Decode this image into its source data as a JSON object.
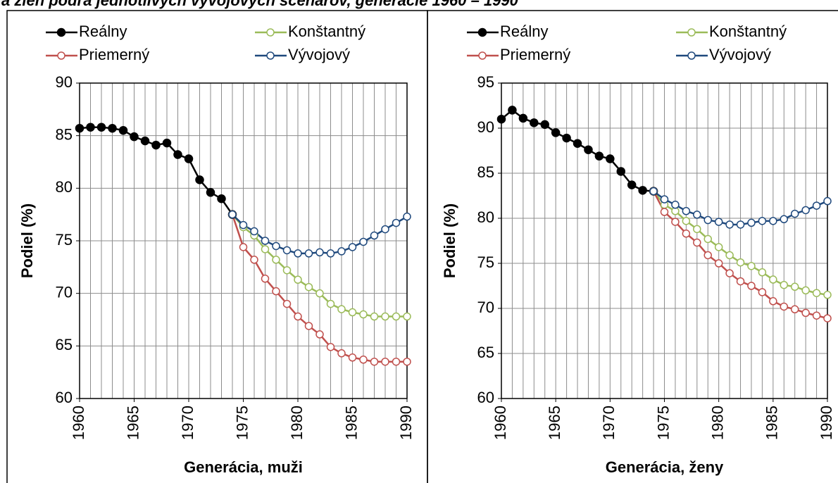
{
  "title": "a žien podľa jednotlivých vývojových scenárov, generácie 1960 – 1990",
  "chart_data": [
    {
      "type": "line",
      "x_label": "Generácia, muži",
      "y_label": "Podiel (%)",
      "x": [
        1960,
        1961,
        1962,
        1963,
        1964,
        1965,
        1966,
        1967,
        1968,
        1969,
        1970,
        1971,
        1972,
        1973,
        1974,
        1975,
        1976,
        1977,
        1978,
        1979,
        1980,
        1981,
        1982,
        1983,
        1984,
        1985,
        1986,
        1987,
        1988,
        1989,
        1990
      ],
      "xlim": [
        1960,
        1990
      ],
      "xticks": [
        1960,
        1965,
        1970,
        1975,
        1980,
        1985,
        1990
      ],
      "ylim": [
        60,
        90
      ],
      "yticks": [
        60,
        65,
        70,
        75,
        80,
        85,
        90
      ],
      "grid": true,
      "series": [
        {
          "name": "Reálny",
          "color": "#000000",
          "values": [
            85.7,
            85.8,
            85.8,
            85.7,
            85.5,
            84.9,
            84.5,
            84.1,
            84.3,
            83.2,
            82.8,
            80.8,
            79.6,
            79.0,
            77.5,
            null,
            null,
            null,
            null,
            null,
            null,
            null,
            null,
            null,
            null,
            null,
            null,
            null,
            null,
            null,
            null
          ]
        },
        {
          "name": "Konštantný",
          "color": "#9bbb59",
          "values": [
            null,
            null,
            null,
            null,
            null,
            null,
            null,
            null,
            null,
            null,
            null,
            null,
            null,
            null,
            77.5,
            76.3,
            75.5,
            74.2,
            73.2,
            72.2,
            71.3,
            70.6,
            70.0,
            69.0,
            68.5,
            68.2,
            68.0,
            67.8,
            67.8,
            67.8,
            67.8
          ]
        },
        {
          "name": "Priemerný",
          "color": "#c0504d",
          "values": [
            null,
            null,
            null,
            null,
            null,
            null,
            null,
            null,
            null,
            null,
            null,
            null,
            null,
            null,
            77.5,
            74.4,
            73.2,
            71.4,
            70.2,
            69.0,
            67.8,
            66.9,
            66.1,
            64.9,
            64.3,
            63.9,
            63.7,
            63.5,
            63.5,
            63.5,
            63.5
          ]
        },
        {
          "name": "Vývojový",
          "color": "#1f497d",
          "values": [
            null,
            null,
            null,
            null,
            null,
            null,
            null,
            null,
            null,
            null,
            null,
            null,
            null,
            null,
            77.5,
            76.5,
            75.9,
            75.0,
            74.5,
            74.1,
            73.8,
            73.8,
            73.9,
            73.8,
            74.0,
            74.4,
            74.9,
            75.5,
            76.1,
            76.7,
            77.3
          ]
        }
      ]
    },
    {
      "type": "line",
      "x_label": "Generácia, ženy",
      "y_label": "Podiel (%)",
      "x": [
        1960,
        1961,
        1962,
        1963,
        1964,
        1965,
        1966,
        1967,
        1968,
        1969,
        1970,
        1971,
        1972,
        1973,
        1974,
        1975,
        1976,
        1977,
        1978,
        1979,
        1980,
        1981,
        1982,
        1983,
        1984,
        1985,
        1986,
        1987,
        1988,
        1989,
        1990
      ],
      "xlim": [
        1960,
        1990
      ],
      "xticks": [
        1960,
        1965,
        1970,
        1975,
        1980,
        1985,
        1990
      ],
      "ylim": [
        60,
        95
      ],
      "yticks": [
        60,
        65,
        70,
        75,
        80,
        85,
        90,
        95
      ],
      "grid": true,
      "series": [
        {
          "name": "Reálny",
          "color": "#000000",
          "values": [
            91.0,
            92.0,
            91.1,
            90.6,
            90.4,
            89.5,
            88.9,
            88.3,
            87.6,
            86.9,
            86.6,
            85.2,
            83.7,
            83.1,
            83.0,
            null,
            null,
            null,
            null,
            null,
            null,
            null,
            null,
            null,
            null,
            null,
            null,
            null,
            null,
            null,
            null
          ]
        },
        {
          "name": "Konštantný",
          "color": "#9bbb59",
          "values": [
            null,
            null,
            null,
            null,
            null,
            null,
            null,
            null,
            null,
            null,
            null,
            null,
            null,
            null,
            83.0,
            81.5,
            80.8,
            79.7,
            78.8,
            77.7,
            76.8,
            75.9,
            75.1,
            74.7,
            74.0,
            73.2,
            72.6,
            72.4,
            72.0,
            71.7,
            71.5
          ]
        },
        {
          "name": "Priemerný",
          "color": "#c0504d",
          "values": [
            null,
            null,
            null,
            null,
            null,
            null,
            null,
            null,
            null,
            null,
            null,
            null,
            null,
            null,
            83.0,
            80.7,
            79.6,
            78.3,
            77.3,
            75.9,
            75.0,
            73.9,
            73.0,
            72.5,
            71.8,
            70.8,
            70.2,
            69.9,
            69.5,
            69.2,
            68.9
          ]
        },
        {
          "name": "Vývojový",
          "color": "#1f497d",
          "values": [
            null,
            null,
            null,
            null,
            null,
            null,
            null,
            null,
            null,
            null,
            null,
            null,
            null,
            null,
            83.0,
            82.1,
            81.5,
            80.8,
            80.4,
            79.8,
            79.6,
            79.3,
            79.3,
            79.5,
            79.7,
            79.7,
            79.9,
            80.5,
            80.9,
            81.4,
            81.9
          ]
        }
      ]
    }
  ]
}
